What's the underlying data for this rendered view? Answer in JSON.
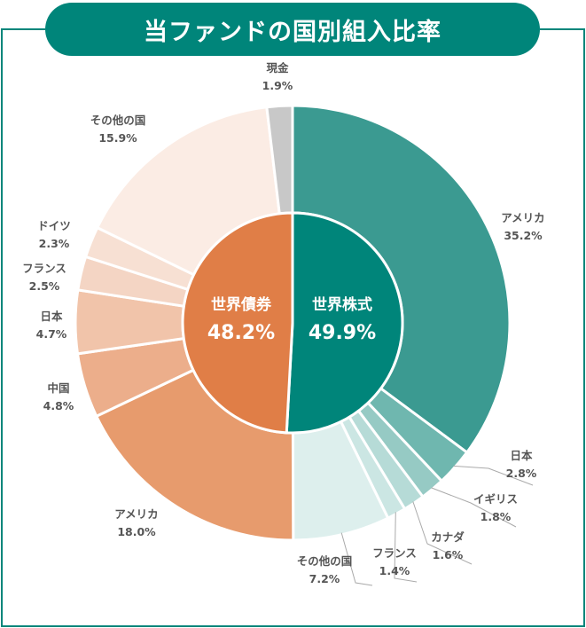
{
  "chart_data": {
    "type": "pie",
    "title": "当ファンドの国別組入比率",
    "inner_ring": [
      {
        "name": "世界株式",
        "value": 49.9,
        "value_label": "49.9%",
        "color": "#00857a"
      },
      {
        "name": "世界債券",
        "value": 48.2,
        "value_label": "48.2%",
        "color": "#e07e47"
      }
    ],
    "outer_ring": [
      {
        "name": "アメリカ",
        "group": "世界株式",
        "value": 35.2,
        "value_label": "35.2%",
        "color": "#3b9a91"
      },
      {
        "name": "日本",
        "group": "世界株式",
        "value": 2.8,
        "value_label": "2.8%",
        "color": "#6fb7af"
      },
      {
        "name": "イギリス",
        "group": "世界株式",
        "value": 1.8,
        "value_label": "1.8%",
        "color": "#96cac4"
      },
      {
        "name": "カナダ",
        "group": "世界株式",
        "value": 1.6,
        "value_label": "1.6%",
        "color": "#b6dbd7"
      },
      {
        "name": "フランス",
        "group": "世界株式",
        "value": 1.4,
        "value_label": "1.4%",
        "color": "#cbe6e3"
      },
      {
        "name": "その他の国",
        "group": "世界株式",
        "value": 7.2,
        "value_label": "7.2%",
        "color": "#ddefed"
      },
      {
        "name": "アメリカ",
        "group": "世界債券",
        "value": 18.0,
        "value_label": "18.0%",
        "color": "#e79b6d"
      },
      {
        "name": "中国",
        "group": "世界債券",
        "value": 4.8,
        "value_label": "4.8%",
        "color": "#ecae8b"
      },
      {
        "name": "日本",
        "group": "世界債券",
        "value": 4.7,
        "value_label": "4.7%",
        "color": "#f1c4aa"
      },
      {
        "name": "フランス",
        "group": "世界債券",
        "value": 2.5,
        "value_label": "2.5%",
        "color": "#f4d5c4"
      },
      {
        "name": "ドイツ",
        "group": "世界債券",
        "value": 2.3,
        "value_label": "2.3%",
        "color": "#f7e0d3"
      },
      {
        "name": "その他の国",
        "group": "世界債券",
        "value": 15.9,
        "value_label": "15.9%",
        "color": "#fbece4"
      },
      {
        "name": "現金",
        "group": "現金",
        "value": 1.9,
        "value_label": "1.9%",
        "color": "#c8c8c8"
      }
    ]
  }
}
